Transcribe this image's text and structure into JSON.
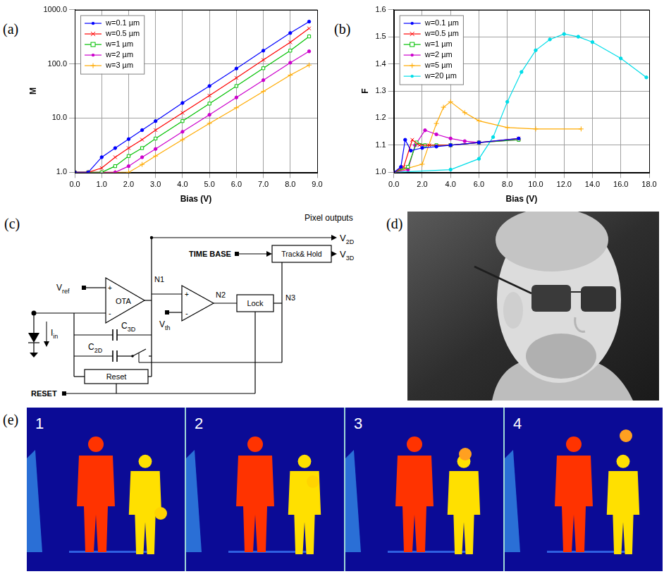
{
  "chart_data": [
    {
      "panel_label": "(a)",
      "type": "line",
      "x_label": "Bias (V)",
      "y_label": "M",
      "log": "y",
      "grid": true,
      "legend": "upper left",
      "xlim": [
        0,
        9
      ],
      "xticks": [
        {
          "value": 0,
          "label": "0.0"
        },
        {
          "value": 1,
          "label": "1.0"
        },
        {
          "value": 2,
          "label": "2.0"
        },
        {
          "value": 3,
          "label": "3.0"
        },
        {
          "value": 4,
          "label": "4.0"
        },
        {
          "value": 5,
          "label": "5.0"
        },
        {
          "value": 6,
          "label": "6.0"
        },
        {
          "value": 7,
          "label": "7.0"
        },
        {
          "value": 8,
          "label": "8.0"
        },
        {
          "value": 9,
          "label": "9.0"
        }
      ],
      "ylim": [
        1,
        1000
      ],
      "yticks": [
        {
          "value": 1,
          "label": "1.0"
        },
        {
          "value": 10,
          "label": "10.0"
        },
        {
          "value": 100,
          "label": "100.0"
        },
        {
          "value": 1000,
          "label": "1000.0"
        }
      ],
      "series": [
        {
          "name": "w=0.1 µm",
          "color": "#0000ff",
          "marker": "circle",
          "x": [
            0,
            0.5,
            1,
            1.5,
            2,
            2.5,
            3,
            4,
            5,
            6,
            7,
            8,
            8.7
          ],
          "values": [
            1,
            1,
            1.9,
            2.8,
            4.1,
            6,
            8.8,
            19,
            39,
            82,
            175,
            370,
            600
          ]
        },
        {
          "name": "w=0.5 µm",
          "color": "#ff0000",
          "marker": "x",
          "x": [
            0,
            0.5,
            1,
            1.5,
            2,
            2.5,
            3,
            4,
            5,
            6,
            7,
            8,
            8.7
          ],
          "values": [
            1,
            1,
            1.2,
            1.9,
            2.8,
            4,
            6,
            12.5,
            26,
            55,
            118,
            250,
            450
          ]
        },
        {
          "name": "w=1 µm",
          "color": "#00c000",
          "marker": "square",
          "x": [
            0,
            0.5,
            1,
            1.5,
            2,
            2.5,
            3,
            4,
            5,
            6,
            7,
            8,
            8.7
          ],
          "values": [
            1,
            1,
            1,
            1.3,
            2,
            2.8,
            4.2,
            8.8,
            18.5,
            39,
            83,
            175,
            320
          ]
        },
        {
          "name": "w=2 µm",
          "color": "#cc00cc",
          "marker": "circle",
          "x": [
            0,
            0.5,
            1,
            1.5,
            2,
            2.5,
            3,
            4,
            5,
            6,
            7,
            8,
            8.7
          ],
          "values": [
            1,
            1,
            1,
            1,
            1.3,
            1.9,
            2.7,
            5.6,
            11.5,
            24,
            50,
            105,
            170
          ]
        },
        {
          "name": "w=3 µm",
          "color": "#ffaa00",
          "marker": "plus",
          "x": [
            0,
            0.5,
            1,
            1.5,
            2,
            2.5,
            3,
            4,
            5,
            6,
            7,
            8,
            8.7
          ],
          "values": [
            1,
            1,
            1,
            1,
            1,
            1.4,
            2,
            4,
            8,
            15.5,
            31,
            62,
            95
          ]
        }
      ]
    },
    {
      "panel_label": "(b)",
      "type": "line",
      "x_label": "Bias (V)",
      "y_label": "F",
      "grid": true,
      "legend": "upper left",
      "xlim": [
        0,
        18
      ],
      "xticks": [
        {
          "value": 0,
          "label": "0.0"
        },
        {
          "value": 2,
          "label": "2.0"
        },
        {
          "value": 4,
          "label": "4.0"
        },
        {
          "value": 6,
          "label": "6.0"
        },
        {
          "value": 8,
          "label": "8.0"
        },
        {
          "value": 10,
          "label": "10.0"
        },
        {
          "value": 12,
          "label": "12.0"
        },
        {
          "value": 14,
          "label": "14.0"
        },
        {
          "value": 16,
          "label": "16.0"
        },
        {
          "value": 18,
          "label": "18.0"
        }
      ],
      "ylim": [
        1,
        1.6
      ],
      "yticks": [
        {
          "value": 1,
          "label": "1.0"
        },
        1.1,
        1.2,
        1.3,
        1.4,
        1.5,
        1.6
      ],
      "series": [
        {
          "name": "w=0.1 µm",
          "color": "#0000ff",
          "marker": "circle",
          "x": [
            0,
            0.5,
            0.8,
            1.2,
            2,
            3,
            4,
            6,
            8.8
          ],
          "values": [
            1,
            1.02,
            1.12,
            1.08,
            1.09,
            1.095,
            1.1,
            1.11,
            1.125
          ]
        },
        {
          "name": "w=0.5 µm",
          "color": "#ff0000",
          "marker": "x",
          "x": [
            0,
            0.7,
            1.3,
            1.8,
            2.5,
            4,
            6,
            8.8
          ],
          "values": [
            1,
            1.02,
            1.12,
            1.1,
            1.1,
            1.1,
            1.11,
            1.125
          ]
        },
        {
          "name": "w=1 µm",
          "color": "#00c000",
          "marker": "square",
          "x": [
            0,
            1,
            1.6,
            2.2,
            3,
            4,
            6,
            8.8
          ],
          "values": [
            1,
            1.02,
            1.11,
            1.1,
            1.1,
            1.1,
            1.11,
            1.12
          ]
        },
        {
          "name": "w=2 µm",
          "color": "#cc00cc",
          "marker": "circle",
          "x": [
            0,
            1,
            1.5,
            2.2,
            3,
            4,
            5,
            6,
            8.8
          ],
          "values": [
            1,
            1.01,
            1.1,
            1.155,
            1.14,
            1.125,
            1.115,
            1.11,
            1.12
          ]
        },
        {
          "name": "w=5 µm",
          "color": "#ffaa00",
          "marker": "plus",
          "x": [
            0,
            2,
            3,
            3.5,
            4,
            5,
            6,
            8,
            10,
            13.2
          ],
          "values": [
            1,
            1.03,
            1.18,
            1.24,
            1.26,
            1.22,
            1.19,
            1.165,
            1.16,
            1.16
          ]
        },
        {
          "name": "w=20 µm",
          "color": "#00dde8",
          "marker": "circle",
          "x": [
            0,
            4,
            6,
            7,
            8,
            9,
            10,
            11,
            12,
            13,
            14,
            16,
            17.8
          ],
          "values": [
            1,
            1.01,
            1.05,
            1.13,
            1.26,
            1.37,
            1.45,
            1.49,
            1.51,
            1.5,
            1.48,
            1.42,
            1.35
          ]
        }
      ]
    }
  ],
  "diagram": {
    "panel_label": "(c)",
    "pixel_outputs": "Pixel outputs",
    "v2d": {
      "text": "V",
      "sub": "2D"
    },
    "v3d": {
      "text": "V",
      "sub": "3D"
    },
    "time_base": "TIME BASE",
    "track_hold": "Track& Hold",
    "vref": {
      "text": "V",
      "sub": "ref"
    },
    "ota": "OTA",
    "n1": "N1",
    "n2": "N2",
    "n3": "N3",
    "lock": "Lock",
    "vth": {
      "text": "V",
      "sub": "th"
    },
    "c3d": {
      "text": "C",
      "sub": "3D"
    },
    "c2d": {
      "text": "C",
      "sub": "2D"
    },
    "iin": {
      "text": "I",
      "sub": "in"
    },
    "reset_box": "Reset",
    "reset_signal": "RESET",
    "plus": "+",
    "minus": "-"
  },
  "photo": {
    "panel_label": "(d)"
  },
  "frames": {
    "panel_label": "(e)",
    "labels": [
      "1",
      "2",
      "3",
      "4"
    ]
  }
}
